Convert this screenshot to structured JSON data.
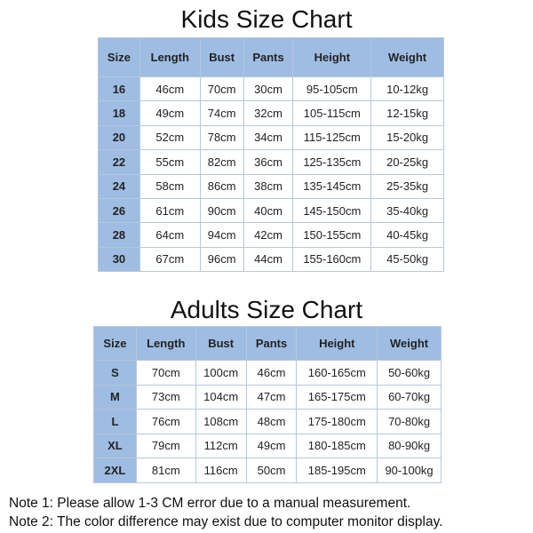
{
  "colors": {
    "header_bg": "#9fbde3",
    "border": "#b7c7dc"
  },
  "kids": {
    "title": "Kids Size Chart",
    "headers": [
      "Size",
      "Length",
      "Bust",
      "Pants",
      "Height",
      "Weight"
    ],
    "rows": [
      [
        "16",
        "46cm",
        "70cm",
        "30cm",
        "95-105cm",
        "10-12kg"
      ],
      [
        "18",
        "49cm",
        "74cm",
        "32cm",
        "105-115cm",
        "12-15kg"
      ],
      [
        "20",
        "52cm",
        "78cm",
        "34cm",
        "115-125cm",
        "15-20kg"
      ],
      [
        "22",
        "55cm",
        "82cm",
        "36cm",
        "125-135cm",
        "20-25kg"
      ],
      [
        "24",
        "58cm",
        "86cm",
        "38cm",
        "135-145cm",
        "25-35kg"
      ],
      [
        "26",
        "61cm",
        "90cm",
        "40cm",
        "145-150cm",
        "35-40kg"
      ],
      [
        "28",
        "64cm",
        "94cm",
        "42cm",
        "150-155cm",
        "40-45kg"
      ],
      [
        "30",
        "67cm",
        "96cm",
        "44cm",
        "155-160cm",
        "45-50kg"
      ]
    ]
  },
  "adults": {
    "title": "Adults Size Chart",
    "headers": [
      "Size",
      "Length",
      "Bust",
      "Pants",
      "Height",
      "Weight"
    ],
    "rows": [
      [
        "S",
        "70cm",
        "100cm",
        "46cm",
        "160-165cm",
        "50-60kg"
      ],
      [
        "M",
        "73cm",
        "104cm",
        "47cm",
        "165-175cm",
        "60-70kg"
      ],
      [
        "L",
        "76cm",
        "108cm",
        "48cm",
        "175-180cm",
        "70-80kg"
      ],
      [
        "XL",
        "79cm",
        "112cm",
        "49cm",
        "180-185cm",
        "80-90kg"
      ],
      [
        "2XL",
        "81cm",
        "116cm",
        "50cm",
        "185-195cm",
        "90-100kg"
      ]
    ]
  },
  "notes": [
    "Note 1: Please allow 1-3 CM error due to a manual measurement.",
    "Note 2: The color difference may exist due to computer monitor display."
  ]
}
